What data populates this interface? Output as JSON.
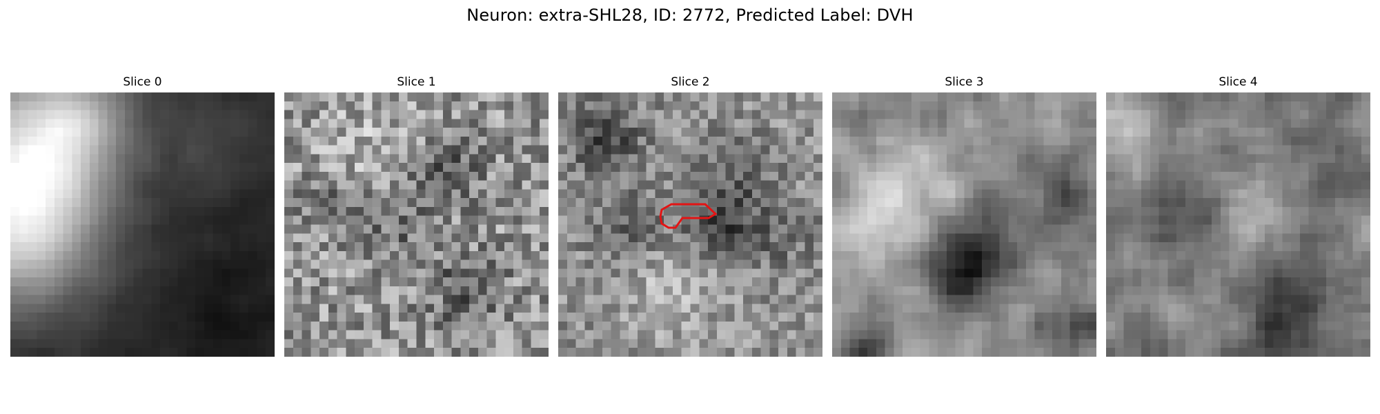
{
  "figure": {
    "title": "Neuron: extra-SHL28, ID: 2772, Predicted Label: DVH",
    "panels": [
      {
        "title": "Slice 0",
        "roi": false
      },
      {
        "title": "Slice 1",
        "roi": false
      },
      {
        "title": "Slice 2",
        "roi": true
      },
      {
        "title": "Slice 3",
        "roi": false
      },
      {
        "title": "Slice 4",
        "roi": false
      }
    ],
    "colormap": "gray",
    "axes_visible": false,
    "roi_color": "#e31414"
  }
}
